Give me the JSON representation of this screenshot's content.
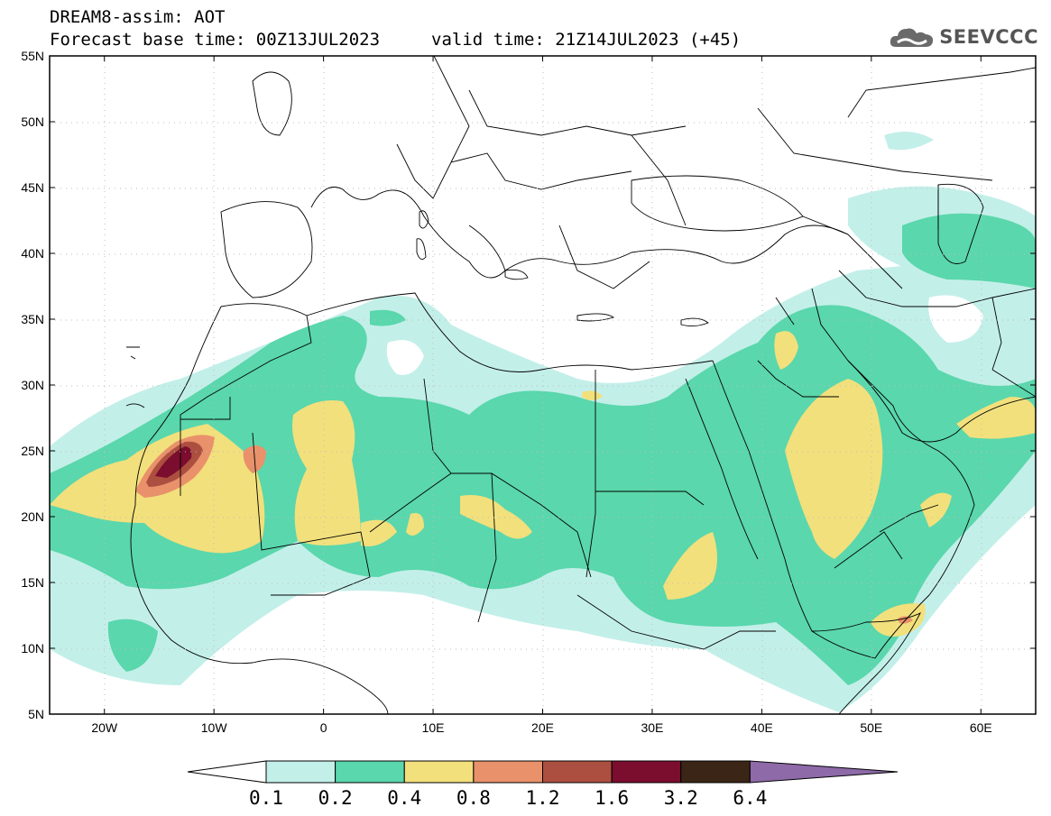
{
  "title": {
    "line1": "DREAM8-assim: AOT",
    "line2": "Forecast base time: 00Z13JUL2023",
    "valid": "valid time: 21Z14JUL2023 (+45)"
  },
  "logo": {
    "text": "SEEVCCC",
    "icon": "cloud-icon"
  },
  "map": {
    "lon_range": [
      -25,
      65
    ],
    "lat_range": [
      5,
      55
    ],
    "lat_labels": [
      "55N",
      "50N",
      "45N",
      "40N",
      "35N",
      "30N",
      "25N",
      "20N",
      "15N",
      "10N",
      "5N"
    ],
    "lon_labels": [
      "20W",
      "10W",
      "0",
      "10E",
      "20E",
      "30E",
      "40E",
      "50E",
      "60E"
    ],
    "grid": true
  },
  "colorbar": {
    "levels": [
      "0.1",
      "0.2",
      "0.4",
      "0.8",
      "1.2",
      "1.6",
      "3.2",
      "6.4"
    ],
    "colors": [
      "#c3efe9",
      "#5ad7ac",
      "#f2e07c",
      "#e9916a",
      "#ad4f40",
      "#7b0d2e",
      "#3b2516",
      "#8e6aa8"
    ],
    "under_color": "#ffffff",
    "extend": "both"
  }
}
